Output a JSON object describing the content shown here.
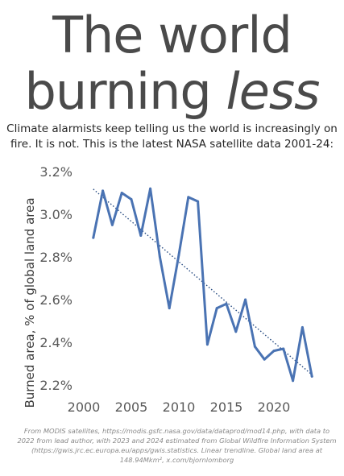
{
  "headline": {
    "line1": "The world",
    "line2_regular": "burning",
    "line2_italic": "less"
  },
  "subtitle": "Climate alarmists keep telling us the world is increasingly on fire. It is not. This is the latest NASA satellite data 2001-24:",
  "footnote": "From MODIS satellites, https://modis.gsfc.nasa.gov/data/dataprod/mod14.php, with data to 2022 from lead author, with 2023 and 2024 estimated from Global Wildfire Information System (https://gwis.jrc.ec.europa.eu/apps/gwis.statistics. Linear trendline. Global land area at 148.94Mkm², x.com/bjornlomborg",
  "colors": {
    "line": "#4a73b3",
    "trend": "#264a80",
    "axis_text": "#595959",
    "headline": "#4a4a4a"
  },
  "chart_data": {
    "type": "line",
    "title": "",
    "xlabel": "",
    "ylabel": "Burned area, % of global land area",
    "xlim": [
      2000,
      2025
    ],
    "ylim": [
      2.2,
      3.2
    ],
    "x_ticks": [
      2000,
      2005,
      2010,
      2015,
      2020
    ],
    "y_ticks": [
      2.2,
      2.4,
      2.6,
      2.8,
      3.0,
      3.2
    ],
    "y_tick_labels": [
      "2.2%",
      "2.4%",
      "2.6%",
      "2.8%",
      "3.0%",
      "3.2%"
    ],
    "grid": false,
    "legend": "none",
    "trendline": "linear, dotted",
    "series": [
      {
        "x": [
          2001,
          2002,
          2003,
          2004,
          2005,
          2006,
          2007,
          2008,
          2009,
          2010,
          2011,
          2012,
          2013,
          2014,
          2015,
          2016,
          2017,
          2018,
          2019,
          2020,
          2021,
          2022,
          2023,
          2024
        ],
        "values": [
          2.89,
          3.11,
          2.95,
          3.1,
          3.07,
          2.9,
          3.12,
          2.8,
          2.56,
          2.81,
          3.08,
          3.06,
          2.39,
          2.56,
          2.58,
          2.45,
          2.6,
          2.38,
          2.32,
          2.36,
          2.37,
          2.22,
          2.47,
          2.24
        ]
      }
    ]
  }
}
